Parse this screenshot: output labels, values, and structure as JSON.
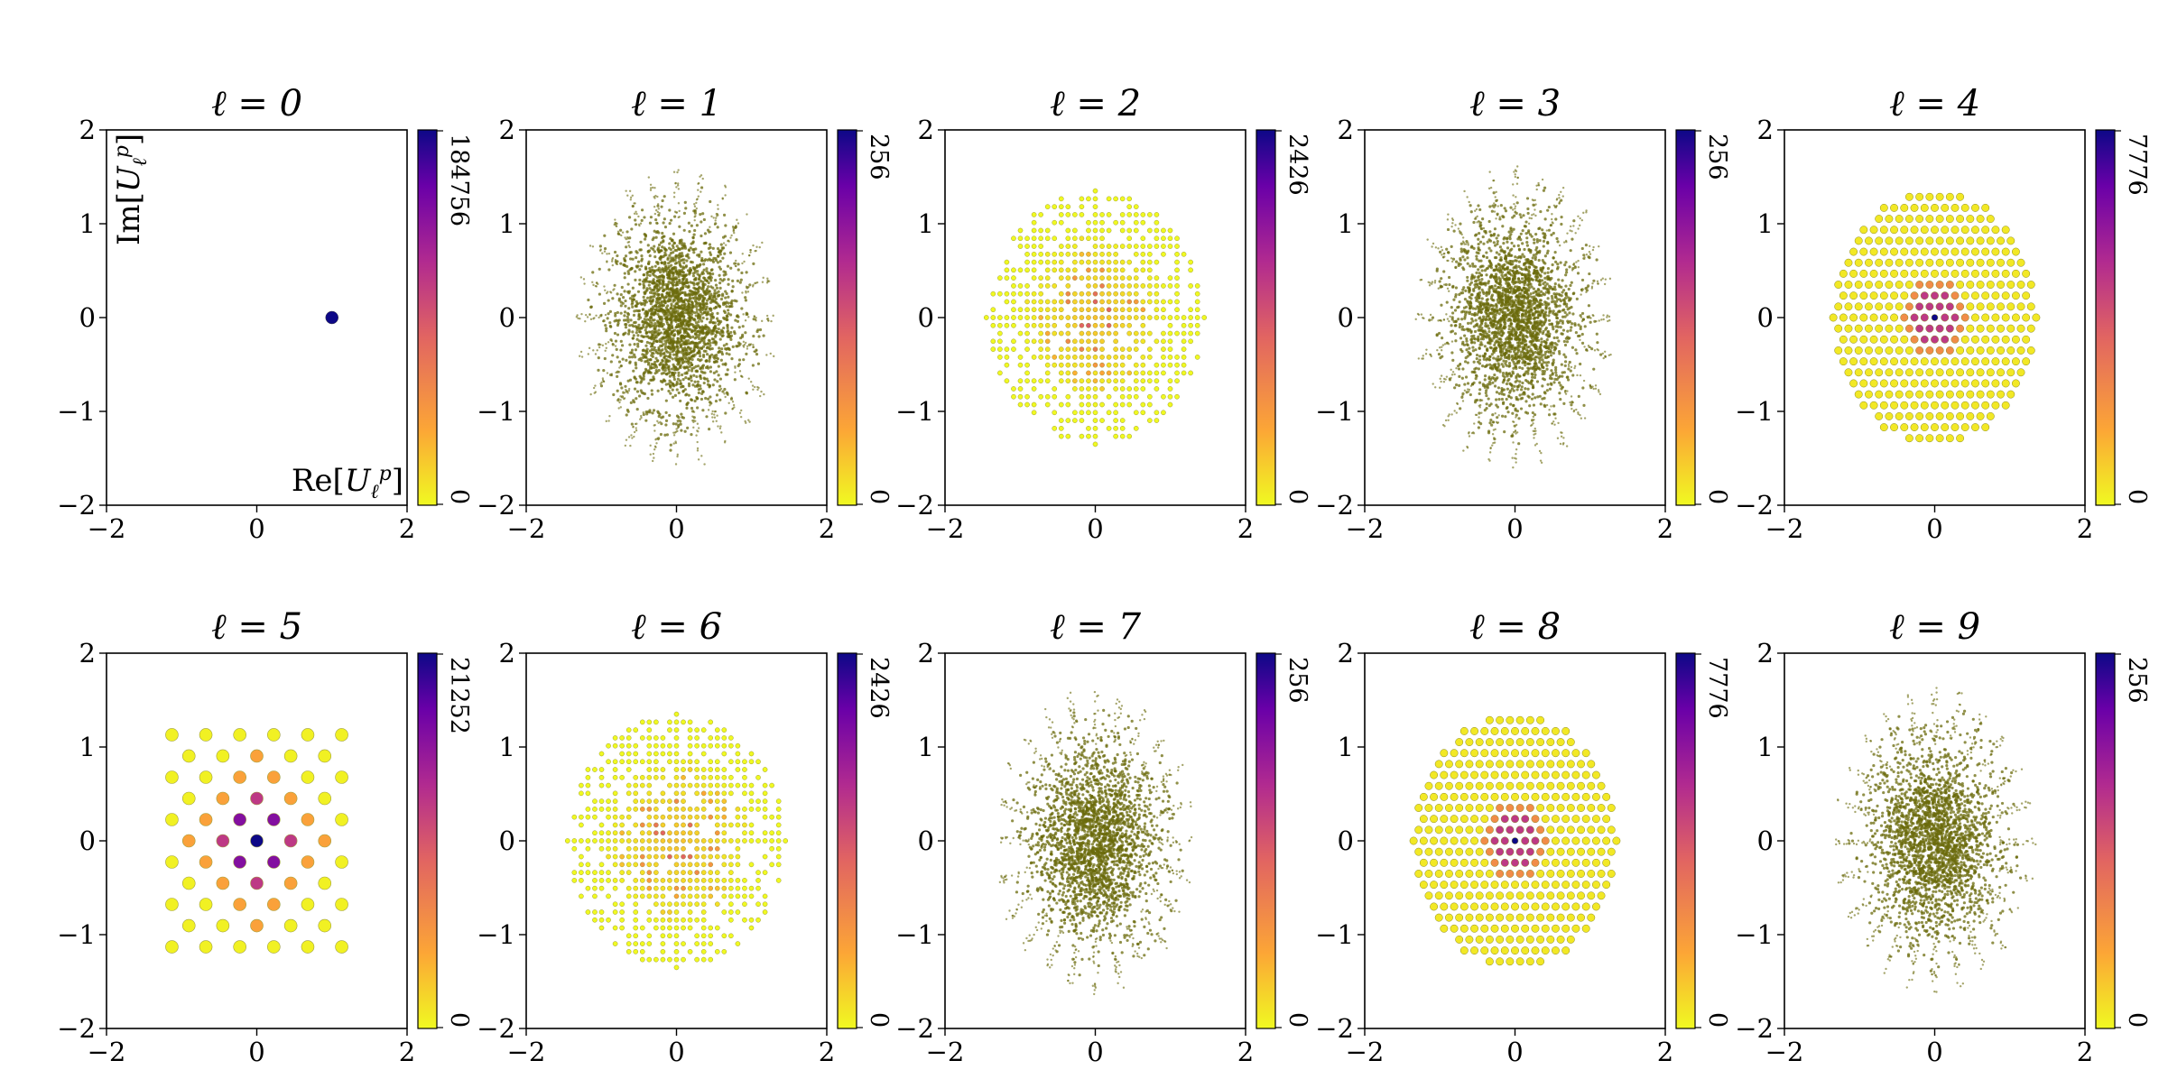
{
  "chart_data": {
    "type": "scatter",
    "description_scope": "grid of 10 panels, 2 rows x 5 columns",
    "xlim": [
      -2,
      2
    ],
    "ylim": [
      -2,
      2
    ],
    "x_ticks": [
      "−2",
      "0",
      "2"
    ],
    "y_ticks": [
      "2",
      "1",
      "0",
      "−1",
      "−2"
    ],
    "xlabel": "Re[Uℓp]",
    "ylabel": "Im[Uℓp]",
    "colormap": [
      "#f0f921",
      "#fca636",
      "#e16462",
      "#b12a90",
      "#6a00a8",
      "#0d0887"
    ],
    "scatter_base_color": "#6b6b0c",
    "panels": [
      {
        "title": "ℓ = 0",
        "cb_max": "184756",
        "cb_min": "0",
        "pattern": "point",
        "points": [
          {
            "x": 1.0,
            "y": 0.0,
            "count_frac": 1.0
          }
        ]
      },
      {
        "title": "ℓ = 1",
        "cb_max": "256",
        "cb_min": "0",
        "pattern": "cloud",
        "cloud_radius_x": 1.15,
        "cloud_radius_y": 1.4
      },
      {
        "title": "ℓ = 2",
        "cb_max": "2426",
        "cb_min": "0",
        "pattern": "sparse",
        "lattice": 16,
        "radius_x": 1.45,
        "radius_y": 1.35
      },
      {
        "title": "ℓ = 3",
        "cb_max": "256",
        "cb_min": "0",
        "pattern": "cloud",
        "cloud_radius_x": 1.15,
        "cloud_radius_y": 1.4
      },
      {
        "title": "ℓ = 4",
        "cb_max": "7776",
        "cb_min": "0",
        "pattern": "hex",
        "spacing": 0.135,
        "radius": 1.35
      },
      {
        "title": "ℓ = 5",
        "cb_max": "21252",
        "cb_min": "0",
        "pattern": "grid",
        "step": 0.226,
        "half_extent": 5
      },
      {
        "title": "ℓ = 6",
        "cb_max": "2426",
        "cb_min": "0",
        "pattern": "sparse",
        "lattice": 16,
        "radius_x": 1.45,
        "radius_y": 1.35
      },
      {
        "title": "ℓ = 7",
        "cb_max": "256",
        "cb_min": "0",
        "pattern": "cloud",
        "cloud_radius_x": 1.15,
        "cloud_radius_y": 1.4
      },
      {
        "title": "ℓ = 8",
        "cb_max": "7776",
        "cb_min": "0",
        "pattern": "hex",
        "spacing": 0.135,
        "radius": 1.35
      },
      {
        "title": "ℓ = 9",
        "cb_max": "256",
        "cb_min": "0",
        "pattern": "cloud",
        "cloud_radius_x": 1.15,
        "cloud_radius_y": 1.4
      }
    ]
  }
}
